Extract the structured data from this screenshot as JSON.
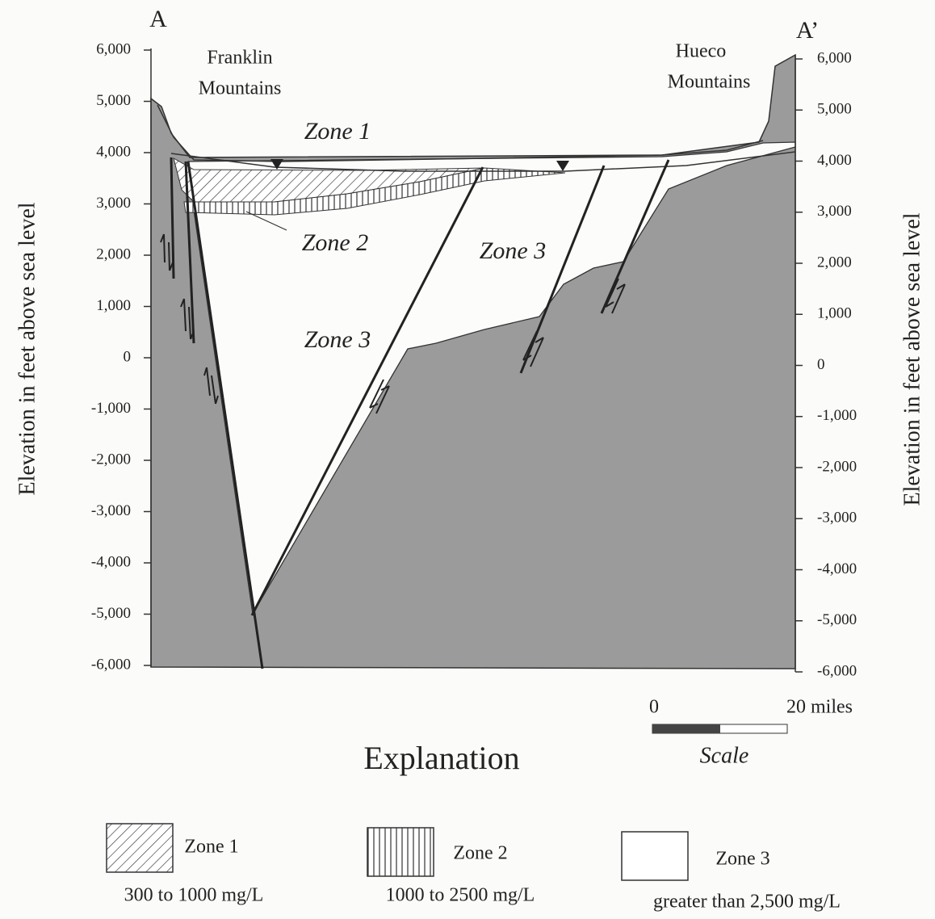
{
  "points": {
    "left": "A",
    "right": "A’"
  },
  "mountains": {
    "left": [
      "Franklin",
      "Mountains"
    ],
    "right": [
      "Hueco",
      "Mountains"
    ]
  },
  "left_axis": {
    "title": "Elevation in feet above sea level",
    "ticks": [
      "6,000",
      "5,000",
      "4,000",
      "3,000",
      "2,000",
      "1,000",
      "0",
      "-1,000",
      "-2,000",
      "-3,000",
      "-4,000",
      "-5,000",
      "-6,000"
    ]
  },
  "right_axis": {
    "title": "Elevation in feet above sea level",
    "ticks": [
      "6,000",
      "5,000",
      "4,000",
      "3,000",
      "2,000",
      "1,000",
      "0",
      "-1,000",
      "-2,000",
      "-3,000",
      "-4,000",
      "-5,000",
      "-6,000"
    ]
  },
  "zones": [
    "Zone 1",
    "Zone 2",
    "Zone 3",
    "Zone 3"
  ],
  "scale": {
    "start": "0",
    "end": "20 miles",
    "label": "Scale"
  },
  "explanation": {
    "title": "Explanation",
    "items": [
      {
        "name": "Zone 1",
        "range": "300 to 1000 mg/L"
      },
      {
        "name": "Zone 2",
        "range": "1000 to 2500 mg/L"
      },
      {
        "name": "Zone 3",
        "range": "greater than 2,500 mg/L"
      }
    ]
  }
}
